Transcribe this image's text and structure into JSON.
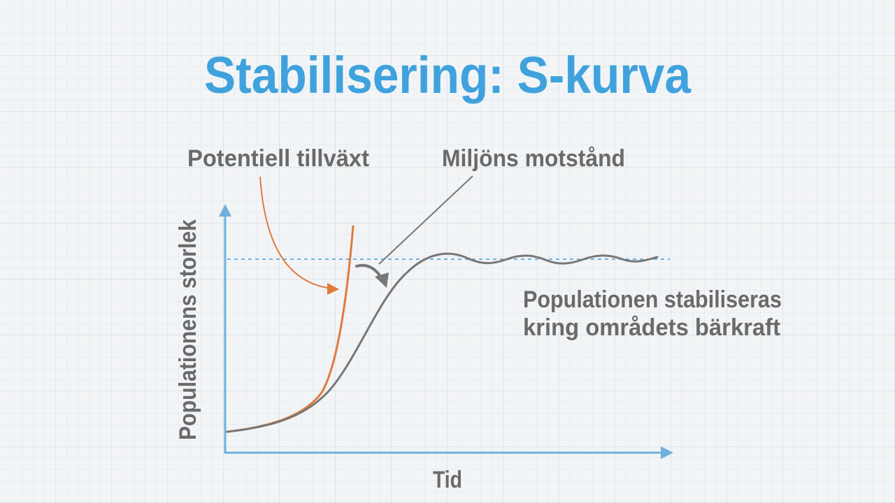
{
  "title": "Stabilisering: S-kurva",
  "annotations": {
    "potential_growth": "Potentiell tillväxt",
    "environmental_resistance": "Miljöns motstånd",
    "stabilization": [
      "Populationen stabiliseras",
      "kring områdets bärkraft"
    ]
  },
  "axes": {
    "y_label": "Populationens storlek",
    "x_label": "Tid"
  }
}
